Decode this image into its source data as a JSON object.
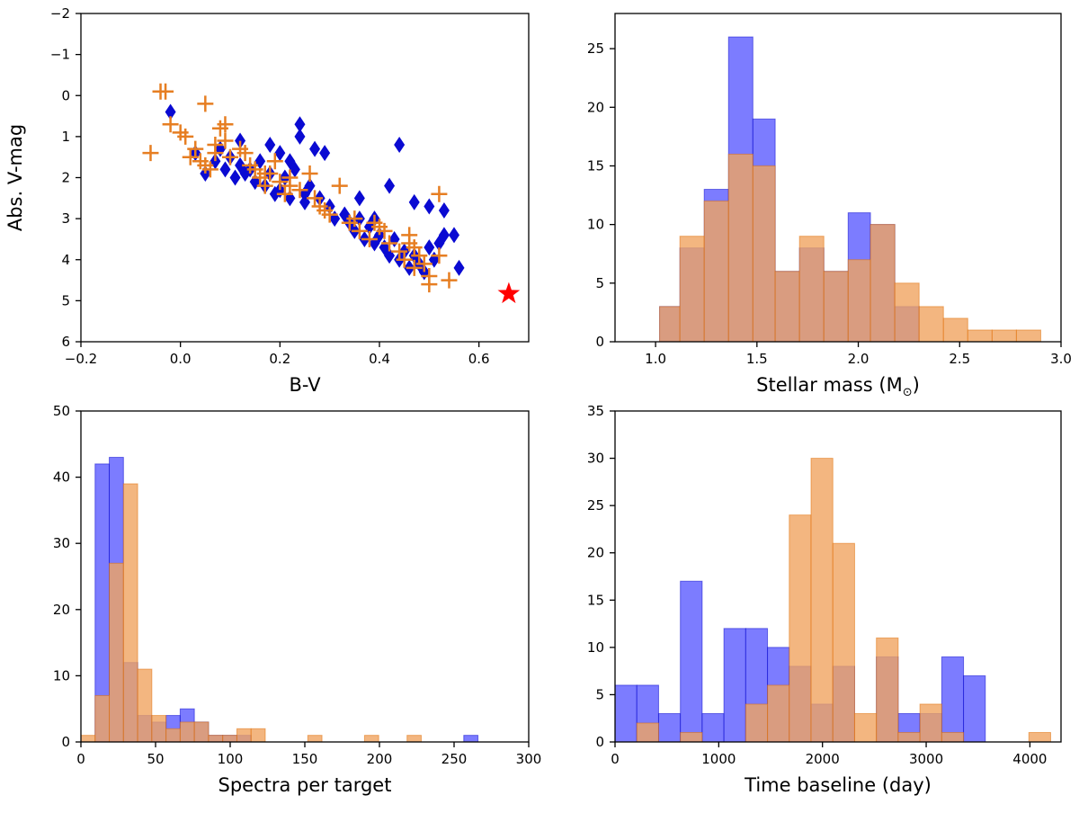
{
  "colors": {
    "group_a": "#5b5bff",
    "group_b": "#f0a460",
    "group_a_edge": "#0000cc",
    "group_b_edge": "#e06b00",
    "scatter_a": "#0a0ad2",
    "scatter_b": "#e67e22",
    "sun": "#ff0000"
  },
  "chart_data": [
    {
      "id": "cmd",
      "type": "scatter",
      "xlabel": "B-V",
      "ylabel": "Abs. V-mag",
      "xlim": [
        -0.2,
        0.7
      ],
      "ylim": [
        6,
        -2
      ],
      "xticks": [
        -0.2,
        0.0,
        0.2,
        0.4,
        0.6
      ],
      "xtick_labels": [
        "−0.2",
        "0.0",
        "0.2",
        "0.4",
        "0.6"
      ],
      "yticks": [
        -2,
        -1,
        0,
        1,
        2,
        3,
        4,
        5,
        6
      ],
      "ytick_labels": [
        "−2",
        "−1",
        "0",
        "1",
        "2",
        "3",
        "4",
        "5",
        "6"
      ],
      "series": [
        {
          "marker": "diamond",
          "x": [
            -0.02,
            0.03,
            0.05,
            0.07,
            0.08,
            0.09,
            0.1,
            0.11,
            0.12,
            0.13,
            0.14,
            0.15,
            0.16,
            0.17,
            0.18,
            0.19,
            0.2,
            0.21,
            0.22,
            0.23,
            0.24,
            0.25,
            0.26,
            0.27,
            0.28,
            0.3,
            0.31,
            0.33,
            0.34,
            0.35,
            0.36,
            0.37,
            0.38,
            0.39,
            0.4,
            0.41,
            0.42,
            0.43,
            0.44,
            0.45,
            0.46,
            0.47,
            0.48,
            0.49,
            0.5,
            0.51,
            0.52,
            0.53,
            0.55,
            0.56,
            0.24,
            0.18,
            0.22,
            0.25,
            0.12,
            0.36,
            0.42,
            0.44,
            0.47,
            0.5,
            0.53,
            0.39,
            0.33,
            0.29,
            0.2
          ],
          "y": [
            0.4,
            1.4,
            1.9,
            1.6,
            1.3,
            1.8,
            1.5,
            2.0,
            1.7,
            1.9,
            1.8,
            2.1,
            1.6,
            2.2,
            1.9,
            2.4,
            2.3,
            2.0,
            2.5,
            1.8,
            1.0,
            2.6,
            2.2,
            1.3,
            2.5,
            2.7,
            3.0,
            2.9,
            3.1,
            3.3,
            3.0,
            3.5,
            3.2,
            3.6,
            3.4,
            3.7,
            3.9,
            3.5,
            4.0,
            3.8,
            4.2,
            3.9,
            4.1,
            4.3,
            3.7,
            4.0,
            3.6,
            3.4,
            3.4,
            4.2,
            0.7,
            1.2,
            1.6,
            2.4,
            1.1,
            2.5,
            2.2,
            1.2,
            2.6,
            2.7,
            2.8,
            3.0,
            2.9,
            1.4,
            1.4
          ]
        },
        {
          "marker": "plus",
          "x": [
            -0.06,
            -0.04,
            -0.03,
            -0.02,
            0.0,
            0.01,
            0.02,
            0.03,
            0.04,
            0.05,
            0.06,
            0.07,
            0.08,
            0.09,
            0.1,
            0.12,
            0.14,
            0.15,
            0.16,
            0.17,
            0.18,
            0.19,
            0.2,
            0.21,
            0.22,
            0.24,
            0.26,
            0.28,
            0.3,
            0.32,
            0.34,
            0.36,
            0.38,
            0.4,
            0.42,
            0.44,
            0.45,
            0.46,
            0.47,
            0.48,
            0.49,
            0.5,
            0.52,
            0.54,
            0.05,
            0.09,
            0.13,
            0.22,
            0.29,
            0.35,
            0.41,
            0.47,
            0.5,
            0.52,
            0.46,
            0.39,
            0.27,
            0.17,
            0.07
          ],
          "y": [
            1.4,
            -0.1,
            -0.1,
            0.7,
            0.9,
            1.0,
            1.5,
            1.3,
            1.6,
            0.2,
            1.8,
            1.4,
            0.8,
            0.7,
            1.5,
            1.3,
            1.7,
            1.8,
            2.0,
            2.2,
            1.9,
            1.6,
            2.1,
            2.4,
            2.0,
            2.3,
            1.9,
            2.7,
            2.9,
            2.2,
            3.1,
            3.3,
            3.5,
            3.2,
            3.6,
            3.8,
            4.0,
            3.4,
            4.2,
            3.9,
            4.1,
            4.6,
            2.4,
            4.5,
            1.7,
            1.1,
            1.4,
            2.2,
            2.8,
            3.0,
            3.3,
            3.7,
            4.4,
            3.9,
            3.6,
            3.1,
            2.5,
            1.9,
            1.2
          ]
        },
        {
          "marker": "star",
          "x": [
            0.66
          ],
          "y": [
            4.83
          ]
        }
      ]
    },
    {
      "id": "mass",
      "type": "bar",
      "xlabel": "Stellar mass (M",
      "xlabel_suffix": ")",
      "xlim": [
        0.8,
        3.0
      ],
      "ylim": [
        0,
        28
      ],
      "xticks": [
        1.0,
        1.5,
        2.0,
        2.5,
        3.0
      ],
      "xtick_labels": [
        "1.0",
        "1.5",
        "2.0",
        "2.5",
        "3.0"
      ],
      "yticks": [
        0,
        5,
        10,
        15,
        20,
        25
      ],
      "ytick_labels": [
        "0",
        "5",
        "10",
        "15",
        "20",
        "25"
      ],
      "bin_edges": [
        1.02,
        1.12,
        1.24,
        1.36,
        1.48,
        1.59,
        1.71,
        1.83,
        1.95,
        2.06,
        2.18,
        2.3,
        2.42,
        2.54,
        2.66,
        2.78,
        2.9
      ],
      "series": [
        {
          "values": [
            3,
            8,
            13,
            26,
            19,
            6,
            8,
            6,
            11,
            10,
            3,
            0,
            0,
            0,
            0,
            0
          ]
        },
        {
          "values": [
            3,
            9,
            12,
            16,
            15,
            6,
            9,
            6,
            7,
            10,
            5,
            3,
            2,
            1,
            1,
            1
          ]
        }
      ]
    },
    {
      "id": "spectra",
      "type": "bar",
      "xlabel": "Spectra per target",
      "xlim": [
        0,
        300
      ],
      "ylim": [
        0,
        50
      ],
      "xticks": [
        0,
        50,
        100,
        150,
        200,
        250,
        300
      ],
      "xtick_labels": [
        "0",
        "50",
        "100",
        "150",
        "200",
        "250",
        "300"
      ],
      "yticks": [
        0,
        10,
        20,
        30,
        40,
        50
      ],
      "ytick_labels": [
        "0",
        "10",
        "20",
        "30",
        "40",
        "50"
      ],
      "bins": [
        {
          "x0": 0,
          "x1": 9.5,
          "a": 0,
          "b": 1
        },
        {
          "x0": 9.5,
          "x1": 19,
          "a": 42,
          "b": 7
        },
        {
          "x0": 19,
          "x1": 28.5,
          "a": 43,
          "b": 27
        },
        {
          "x0": 28.5,
          "x1": 38,
          "a": 12,
          "b": 39
        },
        {
          "x0": 38,
          "x1": 47.5,
          "a": 4,
          "b": 11
        },
        {
          "x0": 47.5,
          "x1": 57,
          "a": 3,
          "b": 4
        },
        {
          "x0": 57,
          "x1": 66.5,
          "a": 4,
          "b": 2
        },
        {
          "x0": 66.5,
          "x1": 76,
          "a": 5,
          "b": 3
        },
        {
          "x0": 76,
          "x1": 85.5,
          "a": 3,
          "b": 3
        },
        {
          "x0": 85.5,
          "x1": 95,
          "a": 1,
          "b": 1
        },
        {
          "x0": 95,
          "x1": 104.5,
          "a": 1,
          "b": 1
        },
        {
          "x0": 104.5,
          "x1": 114,
          "a": 1,
          "b": 2
        },
        {
          "x0": 114,
          "x1": 123.5,
          "a": 0,
          "b": 2
        },
        {
          "x0": 152,
          "x1": 161.5,
          "a": 0,
          "b": 1
        },
        {
          "x0": 190,
          "x1": 199.5,
          "a": 0,
          "b": 1
        },
        {
          "x0": 218.5,
          "x1": 228,
          "a": 0,
          "b": 1
        },
        {
          "x0": 256.5,
          "x1": 266,
          "a": 1,
          "b": 0
        }
      ]
    },
    {
      "id": "baseline",
      "type": "bar",
      "xlabel": "Time baseline (day)",
      "xlim": [
        0,
        4300
      ],
      "ylim": [
        0,
        35
      ],
      "xticks": [
        0,
        1000,
        2000,
        3000,
        4000
      ],
      "xtick_labels": [
        "0",
        "1000",
        "2000",
        "3000",
        "4000"
      ],
      "yticks": [
        0,
        5,
        10,
        15,
        20,
        25,
        30,
        35
      ],
      "ytick_labels": [
        "0",
        "5",
        "10",
        "15",
        "20",
        "25",
        "30",
        "35"
      ],
      "bin_edges": [
        0,
        210,
        420,
        630,
        840,
        1050,
        1260,
        1470,
        1680,
        1890,
        2100,
        2310,
        2520,
        2730,
        2940,
        3150,
        3360,
        3570,
        3780,
        3990,
        4200
      ],
      "series": [
        {
          "values": [
            6,
            6,
            3,
            17,
            3,
            12,
            12,
            10,
            8,
            4,
            8,
            0,
            9,
            3,
            3,
            9,
            7,
            0,
            0,
            0
          ]
        },
        {
          "values": [
            0,
            2,
            0,
            1,
            0,
            0,
            4,
            6,
            24,
            30,
            21,
            3,
            11,
            1,
            4,
            1,
            0,
            0,
            0,
            1
          ]
        }
      ]
    }
  ]
}
